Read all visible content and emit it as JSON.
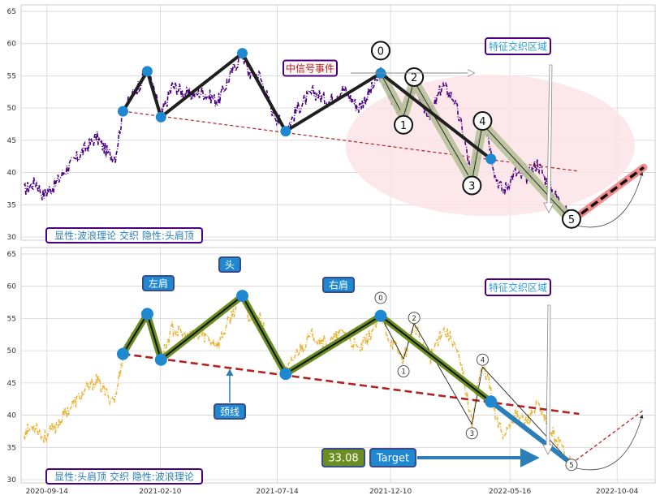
{
  "chart_data": [
    {
      "type": "line",
      "panel": "top",
      "ylim": [
        29.5,
        66
      ],
      "yticks": [
        30,
        35,
        40,
        45,
        50,
        55,
        60,
        65
      ],
      "grid": true,
      "legend": "bottom-left",
      "annotation_text": "显性:波浪理论 交织 隐性:头肩顶",
      "region_label": "特征交织区域",
      "event_label": "中信号事件",
      "wave_labels": [
        "0",
        "1",
        "2",
        "3",
        "4",
        "5"
      ],
      "colors": {
        "price": "#4b0082",
        "pattern": "#1f1f1f",
        "wave_fill": "#b7c29a",
        "forecast": "#f08080",
        "neckline": "#b22222",
        "ellipse": "#fbe3e6"
      }
    },
    {
      "type": "line",
      "panel": "bottom",
      "ylim": [
        29.5,
        66
      ],
      "yticks": [
        30,
        35,
        40,
        45,
        50,
        55,
        60,
        65
      ],
      "grid": true,
      "legend": "bottom-left",
      "annotation_text": "显性:头肩顶 交织 隐性:波浪理论",
      "region_label": "特征交织区域",
      "labels": {
        "left_shoulder": "左肩",
        "head": "头",
        "right_shoulder": "右肩",
        "neckline": "颈线"
      },
      "target_value": "33.08",
      "target_label": "Target",
      "wave_labels": [
        "0",
        "1",
        "2",
        "3",
        "4",
        "5"
      ],
      "colors": {
        "price": "#e8b53a",
        "pattern": "#6b8e23",
        "neckline": "#b22222",
        "marker": "#1e88d0",
        "target_box": "#6b8e23"
      }
    }
  ],
  "x_axis": {
    "ticks": [
      "2020-09-14",
      "2021-02-10",
      "2021-07-14",
      "2021-12-10",
      "2022-05-16",
      "2022-10-04"
    ],
    "tick_days": [
      0,
      149,
      303,
      452,
      609,
      750
    ],
    "range_days": [
      -34,
      800
    ]
  },
  "pattern_points": [
    {
      "day": 100,
      "value": 49.5
    },
    {
      "day": 132,
      "value": 55.7
    },
    {
      "day": 150,
      "value": 48.6
    },
    {
      "day": 257,
      "value": 58.5
    },
    {
      "day": 314,
      "value": 46.4
    },
    {
      "day": 439,
      "value": 55.4
    },
    {
      "day": 584,
      "value": 42.1
    },
    {
      "day": 690,
      "value": 32.5
    }
  ],
  "wave_points": [
    {
      "label": "0",
      "day": 439,
      "value": 55.4
    },
    {
      "label": "1",
      "day": 469,
      "value": 48.7
    },
    {
      "label": "2",
      "day": 483,
      "value": 54.2
    },
    {
      "label": "3",
      "day": 559,
      "value": 38.6
    },
    {
      "label": "4",
      "day": 573,
      "value": 47.5
    },
    {
      "label": "5",
      "day": 690,
      "value": 32.5
    }
  ],
  "neckline": {
    "start": {
      "day": 100,
      "value": 49.5
    },
    "end": {
      "day": 700,
      "value": 40.2
    }
  },
  "forecast": {
    "start": {
      "day": 690,
      "value": 32.5
    },
    "end": {
      "day": 785,
      "value": 40.8
    }
  },
  "price_anchors": [
    [
      -30,
      37.2
    ],
    [
      -15,
      38.6
    ],
    [
      -5,
      36.5
    ],
    [
      10,
      38.0
    ],
    [
      25,
      40.5
    ],
    [
      45,
      43.0
    ],
    [
      65,
      45.5
    ],
    [
      80,
      43.0
    ],
    [
      90,
      42.5
    ],
    [
      100,
      49.5
    ],
    [
      115,
      52.5
    ],
    [
      132,
      55.7
    ],
    [
      140,
      53.0
    ],
    [
      150,
      48.6
    ],
    [
      165,
      53.5
    ],
    [
      185,
      52.0
    ],
    [
      205,
      52.5
    ],
    [
      225,
      51.0
    ],
    [
      245,
      56.0
    ],
    [
      257,
      58.5
    ],
    [
      265,
      55.5
    ],
    [
      280,
      55.0
    ],
    [
      295,
      50.0
    ],
    [
      314,
      46.4
    ],
    [
      330,
      50.0
    ],
    [
      350,
      52.5
    ],
    [
      370,
      51.0
    ],
    [
      390,
      53.0
    ],
    [
      410,
      50.0
    ],
    [
      425,
      52.5
    ],
    [
      439,
      55.4
    ],
    [
      450,
      52.0
    ],
    [
      469,
      48.7
    ],
    [
      483,
      54.2
    ],
    [
      495,
      50.0
    ],
    [
      505,
      49.0
    ],
    [
      520,
      53.5
    ],
    [
      535,
      51.5
    ],
    [
      548,
      46.0
    ],
    [
      559,
      38.6
    ],
    [
      565,
      44.0
    ],
    [
      573,
      47.5
    ],
    [
      580,
      46.0
    ],
    [
      590,
      39.5
    ],
    [
      600,
      37.0
    ],
    [
      615,
      40.0
    ],
    [
      630,
      39.0
    ],
    [
      645,
      41.5
    ],
    [
      660,
      38.0
    ],
    [
      675,
      35.5
    ],
    [
      690,
      32.5
    ]
  ]
}
